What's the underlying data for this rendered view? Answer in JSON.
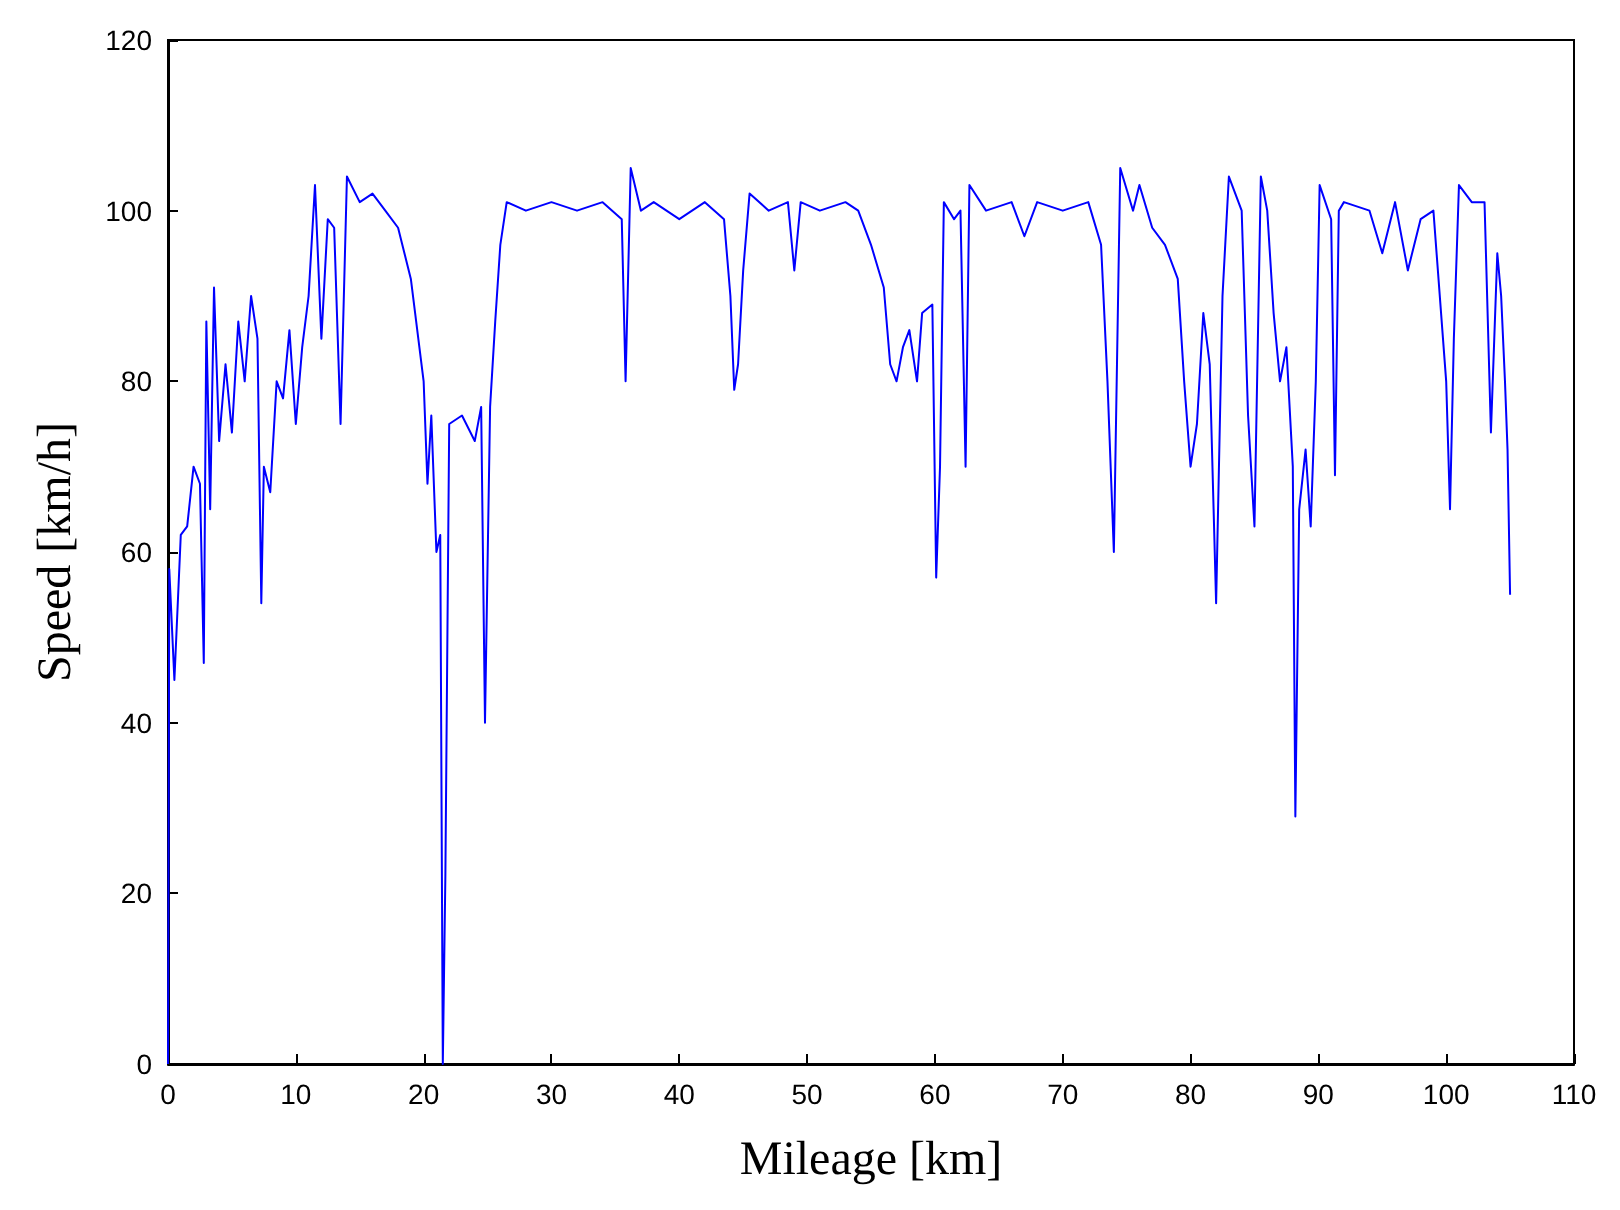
{
  "chart_data": {
    "type": "line",
    "xlabel": "Mileage [km]",
    "ylabel": "Speed [km/h]",
    "x": [
      0,
      0.1,
      0.5,
      1,
      1.5,
      2,
      2.5,
      2.8,
      3,
      3.3,
      3.6,
      4,
      4.5,
      5,
      5.5,
      6,
      6.5,
      7,
      7.3,
      7.5,
      8,
      8.5,
      9,
      9.5,
      10,
      10.5,
      11,
      11.5,
      12,
      12.5,
      13,
      13.5,
      14,
      15,
      16,
      17,
      18,
      19,
      20,
      20.3,
      20.6,
      21,
      21.3,
      21.5,
      21.7,
      22,
      23,
      24,
      24.5,
      24.8,
      25.2,
      25.6,
      26,
      26.5,
      28,
      30,
      32,
      34,
      35.5,
      35.8,
      36.2,
      37,
      38,
      40,
      42,
      43.5,
      44,
      44.3,
      44.6,
      45,
      45.5,
      47,
      48.5,
      49,
      49.5,
      51,
      53,
      54,
      55,
      56,
      56.5,
      57,
      57.5,
      58,
      58.6,
      59,
      59.8,
      60.1,
      60.4,
      60.7,
      61.5,
      62,
      62.4,
      62.7,
      64,
      66,
      67,
      68,
      70,
      72,
      73,
      73.5,
      74,
      74.5,
      75.5,
      76,
      77,
      78,
      79,
      79.5,
      80,
      80.5,
      81,
      81.5,
      82,
      82.5,
      83,
      84,
      84.5,
      85,
      85.5,
      86,
      86.5,
      87,
      87.5,
      88,
      88.2,
      88.5,
      89,
      89.4,
      89.8,
      90.1,
      91,
      91.3,
      91.6,
      92,
      94,
      95,
      96,
      97,
      98,
      99,
      100,
      100.3,
      100.6,
      101,
      102,
      103,
      103.5,
      104,
      104.3,
      104.6,
      104.8,
      105
    ],
    "series": [
      {
        "color": "#0000ff",
        "values": [
          0,
          58,
          45,
          62,
          63,
          70,
          68,
          47,
          87,
          65,
          91,
          73,
          82,
          74,
          87,
          80,
          90,
          85,
          54,
          70,
          67,
          80,
          78,
          86,
          75,
          84,
          90,
          103,
          85,
          99,
          98,
          75,
          104,
          101,
          102,
          100,
          98,
          92,
          80,
          68,
          76,
          60,
          62,
          0,
          22,
          75,
          76,
          73,
          77,
          40,
          77,
          87,
          96,
          101,
          100,
          101,
          100,
          101,
          99,
          80,
          105,
          100,
          101,
          99,
          101,
          99,
          90,
          79,
          82,
          93,
          102,
          100,
          101,
          93,
          101,
          100,
          101,
          100,
          96,
          91,
          82,
          80,
          84,
          86,
          80,
          88,
          89,
          57,
          70,
          101,
          99,
          100,
          70,
          103,
          100,
          101,
          97,
          101,
          100,
          101,
          96,
          80,
          60,
          105,
          100,
          103,
          98,
          96,
          92,
          80,
          70,
          75,
          88,
          82,
          54,
          90,
          104,
          100,
          76,
          63,
          104,
          100,
          88,
          80,
          84,
          70,
          29,
          65,
          72,
          63,
          80,
          103,
          99,
          69,
          100,
          101,
          100,
          95,
          101,
          93,
          99,
          100,
          80,
          65,
          85,
          103,
          101,
          101,
          74,
          95,
          90,
          80,
          72,
          55
        ]
      }
    ],
    "xlim": [
      0,
      110
    ],
    "xticks": [
      0,
      10,
      20,
      30,
      40,
      50,
      60,
      70,
      80,
      90,
      100,
      110
    ],
    "ylim": [
      0,
      120
    ],
    "yticks": [
      0,
      20,
      40,
      60,
      80,
      100,
      120
    ],
    "grid": false,
    "marker": "none",
    "line_style": "solid"
  }
}
